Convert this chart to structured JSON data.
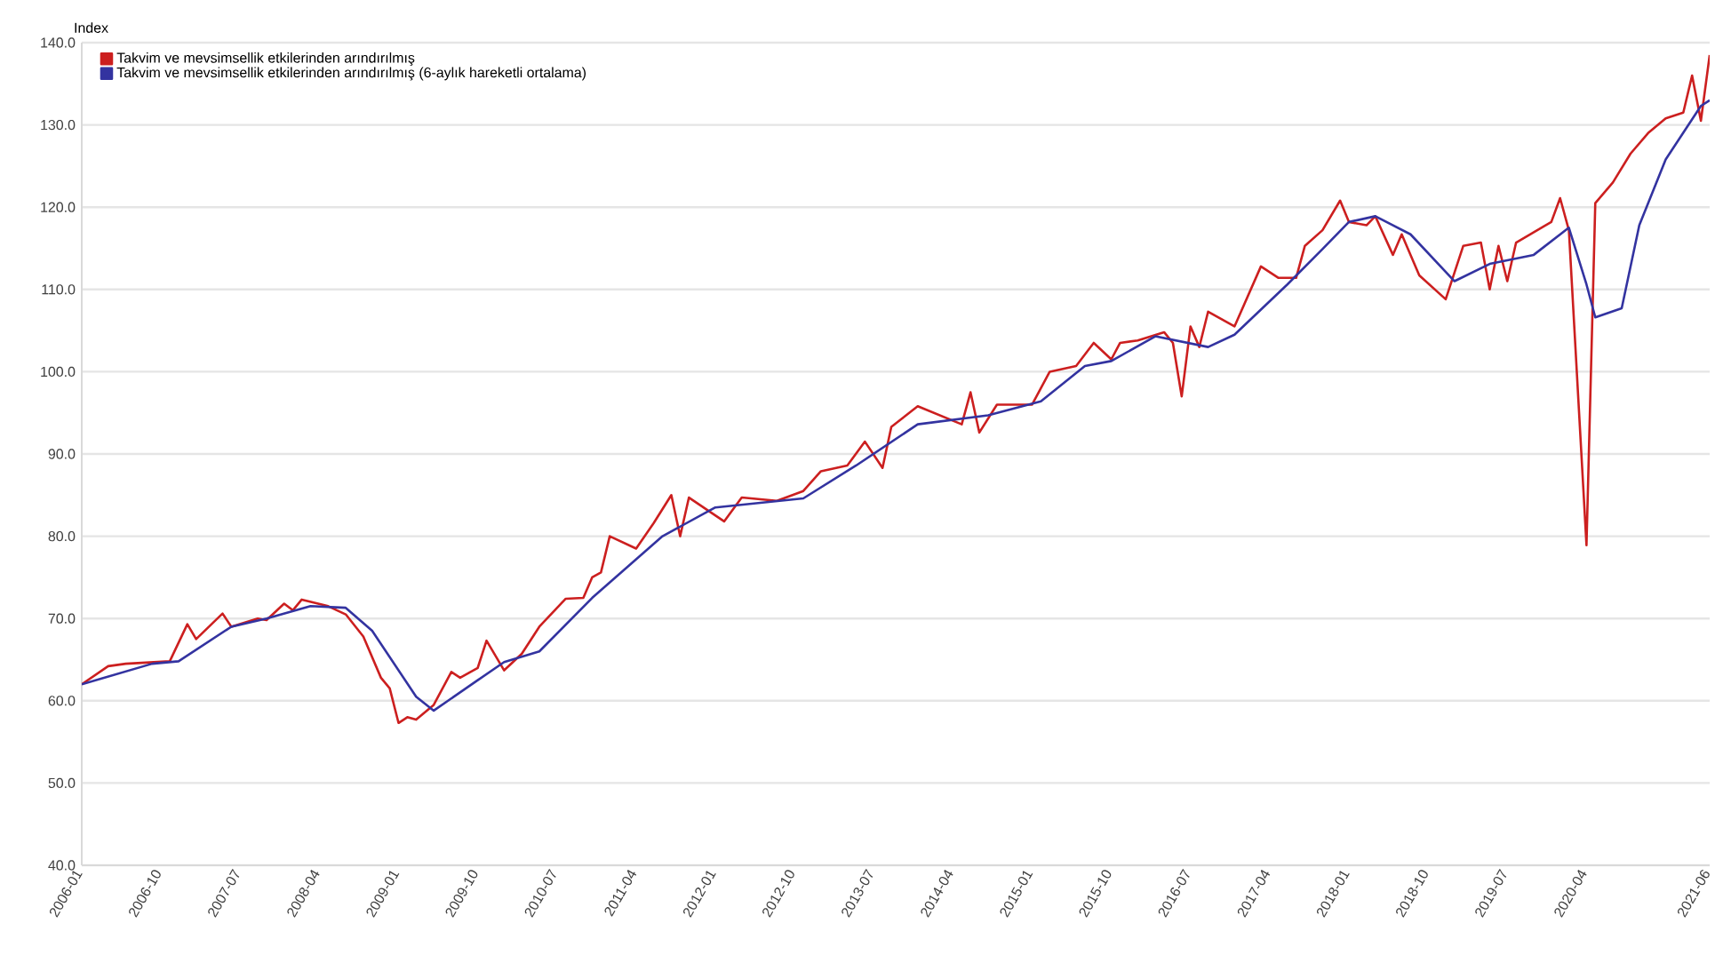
{
  "chart_data": {
    "type": "line",
    "ylabel": "Index",
    "ylim": [
      40,
      140
    ],
    "yticks": [
      {
        "value": 40,
        "label": "40.0"
      },
      {
        "value": 50,
        "label": "50.0"
      },
      {
        "value": 60,
        "label": "60.0"
      },
      {
        "value": 70,
        "label": "70.0"
      },
      {
        "value": 80,
        "label": "80.0"
      },
      {
        "value": 90,
        "label": "90.0"
      },
      {
        "value": 100,
        "label": "100.0"
      },
      {
        "value": 110,
        "label": "110.0"
      },
      {
        "value": 120,
        "label": "120.0"
      },
      {
        "value": 130,
        "label": "130.0"
      },
      {
        "value": 140,
        "label": "140.0"
      }
    ],
    "xlim": [
      "2006-01",
      "2021-06"
    ],
    "xticks": [
      "2006-01",
      "2006-10",
      "2007-07",
      "2008-04",
      "2009-01",
      "2009-10",
      "2010-07",
      "2011-04",
      "2012-01",
      "2012-10",
      "2013-07",
      "2014-04",
      "2015-01",
      "2015-10",
      "2016-07",
      "2017-04",
      "2018-01",
      "2018-10",
      "2019-07",
      "2020-04",
      "2021-06"
    ],
    "grid": "y",
    "legend": "top left",
    "marker": "none",
    "line_style": "solid",
    "series": [
      {
        "name": "Takvim ve mevsimsellik etkilerinden arındırılmış",
        "color": "#cc1f1f",
        "x": [
          "2006-01",
          "2006-04",
          "2006-06",
          "2006-11",
          "2007-01",
          "2007-02",
          "2007-05",
          "2007-06",
          "2007-09",
          "2007-10",
          "2007-12",
          "2008-01",
          "2008-02",
          "2008-05",
          "2008-07",
          "2008-09",
          "2008-11",
          "2008-12",
          "2009-01",
          "2009-02",
          "2009-03",
          "2009-05",
          "2009-07",
          "2009-08",
          "2009-10",
          "2009-11",
          "2010-01",
          "2010-03",
          "2010-05",
          "2010-08",
          "2010-10",
          "2010-11",
          "2010-12",
          "2011-01",
          "2011-04",
          "2011-06",
          "2011-08",
          "2011-09",
          "2011-10",
          "2012-02",
          "2012-04",
          "2012-08",
          "2012-11",
          "2013-01",
          "2013-04",
          "2013-06",
          "2013-08",
          "2013-09",
          "2013-12",
          "2014-05",
          "2014-06",
          "2014-07",
          "2014-09",
          "2015-01",
          "2015-03",
          "2015-06",
          "2015-08",
          "2015-10",
          "2015-11",
          "2016-01",
          "2016-04",
          "2016-05",
          "2016-06",
          "2016-07",
          "2016-08",
          "2016-09",
          "2016-12",
          "2017-03",
          "2017-05",
          "2017-07",
          "2017-08",
          "2017-10",
          "2017-12",
          "2018-01",
          "2018-03",
          "2018-04",
          "2018-06",
          "2018-07",
          "2018-09",
          "2018-12",
          "2019-02",
          "2019-04",
          "2019-05",
          "2019-06",
          "2019-07",
          "2019-08",
          "2019-12",
          "2020-01",
          "2020-02",
          "2020-04",
          "2020-05",
          "2020-07",
          "2020-09",
          "2020-11",
          "2021-01",
          "2021-03",
          "2021-04",
          "2021-05",
          "2021-06"
        ],
        "values": [
          62,
          64.2,
          64.5,
          64.8,
          69.3,
          67.5,
          70.6,
          69,
          70,
          69.8,
          71.8,
          71,
          72.3,
          71.5,
          70.5,
          67.8,
          62.8,
          61.5,
          57.3,
          58,
          57.7,
          59.5,
          63.5,
          62.8,
          64,
          67.3,
          63.7,
          65.7,
          69,
          72.4,
          72.5,
          75,
          75.6,
          80,
          78.5,
          81.6,
          85,
          80,
          84.7,
          81.8,
          84.7,
          84.3,
          85.5,
          87.9,
          88.6,
          91.5,
          88.3,
          93.3,
          95.8,
          93.6,
          97.5,
          92.6,
          96,
          96,
          100,
          100.7,
          103.5,
          101.5,
          103.5,
          103.8,
          104.8,
          103.5,
          97,
          105.5,
          103,
          107.3,
          105.5,
          112.8,
          111.4,
          111.4,
          115.3,
          117.2,
          120.8,
          118.2,
          117.8,
          118.9,
          114.2,
          116.7,
          111.7,
          108.8,
          115.3,
          115.7,
          110,
          115.3,
          111,
          115.7,
          118.2,
          121.1,
          117.2,
          78.9,
          120.5,
          123,
          126.5,
          129,
          130.8,
          131.5,
          136,
          130.5,
          138.5
        ]
      },
      {
        "name": "Takvim ve mevsimsellik etkilerinden arındırılmış (6-aylık hareketli ortalama)",
        "color": "#3333a0",
        "x": [
          "2006-01",
          "2006-09",
          "2006-12",
          "2007-06",
          "2007-10",
          "2008-03",
          "2008-07",
          "2008-10",
          "2009-03",
          "2009-05",
          "2009-10",
          "2010-01",
          "2010-05",
          "2010-11",
          "2011-07",
          "2012-01",
          "2012-11",
          "2013-05",
          "2013-12",
          "2014-08",
          "2015-02",
          "2015-07",
          "2015-10",
          "2016-03",
          "2016-09",
          "2016-12",
          "2017-06",
          "2017-10",
          "2018-01",
          "2018-04",
          "2018-08",
          "2019-01",
          "2019-05",
          "2019-10",
          "2020-02",
          "2020-04",
          "2020-05",
          "2020-08",
          "2020-10",
          "2021-01",
          "2021-05",
          "2021-06"
        ],
        "values": [
          62,
          64.5,
          64.8,
          69,
          70,
          71.5,
          71.3,
          68.5,
          60.5,
          58.8,
          62.5,
          64.7,
          66,
          72.5,
          80,
          83.5,
          84.6,
          88.6,
          93.6,
          94.7,
          96.4,
          100.7,
          101.3,
          104.3,
          103,
          104.5,
          110.6,
          114.9,
          118.2,
          118.9,
          116.7,
          111,
          113.1,
          114.2,
          117.5,
          110.6,
          106.6,
          107.7,
          117.8,
          125.8,
          132.3,
          133
        ]
      }
    ]
  }
}
